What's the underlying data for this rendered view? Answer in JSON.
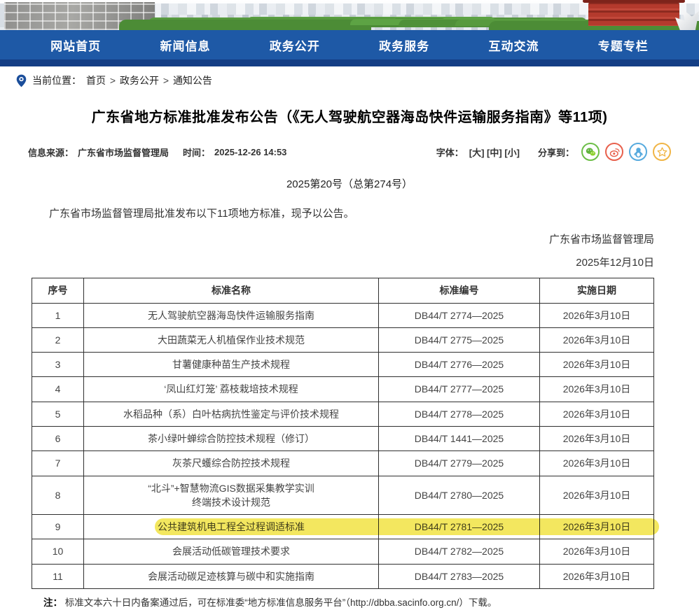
{
  "nav": {
    "items": [
      "网站首页",
      "新闻信息",
      "政务公开",
      "政务服务",
      "互动交流",
      "专题专栏"
    ]
  },
  "breadcrumb": {
    "label": "当前位置：",
    "items": [
      "首页",
      "政务公开",
      "通知公告"
    ],
    "separator": ">"
  },
  "article": {
    "title": "广东省地方标准批准发布公告（《无人驾驶航空器海岛快件运输服务指南》等11项)",
    "source_label": "信息来源：",
    "source": "广东省市场监督管理局",
    "time_label": "时间：",
    "time": "2025-12-26 14:53",
    "font_label": "字体：",
    "font_sizes": [
      "[大]",
      "[中]",
      "[小]"
    ],
    "share_label": "分享到：",
    "share_icons": [
      "wechat",
      "weibo",
      "qq",
      "favorite"
    ],
    "doc_number": "2025第20号（总第274号）",
    "body": "广东省市场监督管理局批准发布以下11项地方标准，现予以公告。",
    "signature": "广东省市场监督管理局",
    "signature_date": "2025年12月10日",
    "note_label": "注：",
    "note": "标准文本六十日内备案通过后，可在标准委“地方标准信息服务平台”（http://dbba.sacinfo.org.cn/）下载。"
  },
  "table": {
    "headers": [
      "序号",
      "标准名称",
      "标准编号",
      "实施日期"
    ],
    "rows": [
      {
        "no": "1",
        "name": "无人驾驶航空器海岛快件运输服务指南",
        "code": "DB44/T 2774—2025",
        "date": "2026年3月10日",
        "highlight": false
      },
      {
        "no": "2",
        "name": "大田蔬菜无人机植保作业技术规范",
        "code": "DB44/T 2775—2025",
        "date": "2026年3月10日",
        "highlight": false
      },
      {
        "no": "3",
        "name": "甘薯健康种苗生产技术规程",
        "code": "DB44/T 2776—2025",
        "date": "2026年3月10日",
        "highlight": false
      },
      {
        "no": "4",
        "name": "‘凤山红灯笼’ 荔枝栽培技术规程",
        "code": "DB44/T 2777—2025",
        "date": "2026年3月10日",
        "highlight": false
      },
      {
        "no": "5",
        "name": "水稻品种（系）白叶枯病抗性鉴定与评价技术规程",
        "code": "DB44/T 2778—2025",
        "date": "2026年3月10日",
        "highlight": false
      },
      {
        "no": "6",
        "name": "茶小绿叶蝉综合防控技术规程（修订）",
        "code": "DB44/T 1441—2025",
        "date": "2026年3月10日",
        "highlight": false
      },
      {
        "no": "7",
        "name": "灰茶尺蠖综合防控技术规程",
        "code": "DB44/T 2779—2025",
        "date": "2026年3月10日",
        "highlight": false
      },
      {
        "no": "8",
        "name": "“北斗”+智慧物流GIS数据采集教学实训\n终端技术设计规范",
        "code": "DB44/T 2780—2025",
        "date": "2026年3月10日",
        "highlight": false
      },
      {
        "no": "9",
        "name": "公共建筑机电工程全过程调适标准",
        "code": "DB44/T 2781—2025",
        "date": "2026年3月10日",
        "highlight": true
      },
      {
        "no": "10",
        "name": "会展活动低碳管理技术要求",
        "code": "DB44/T 2782—2025",
        "date": "2026年3月10日",
        "highlight": false
      },
      {
        "no": "11",
        "name": "会展活动碳足迹核算与碳中和实施指南",
        "code": "DB44/T 2783—2025",
        "date": "2026年3月10日",
        "highlight": false
      }
    ]
  },
  "colors": {
    "nav_blue": "#1e59a6",
    "nav_strip_blue": "#143e85",
    "highlight_yellow": "#f3e75f",
    "wechat_green": "#6cbe47",
    "weibo_orange": "#e8604c",
    "qq_blue": "#56aade",
    "star_gold": "#f0b546"
  }
}
